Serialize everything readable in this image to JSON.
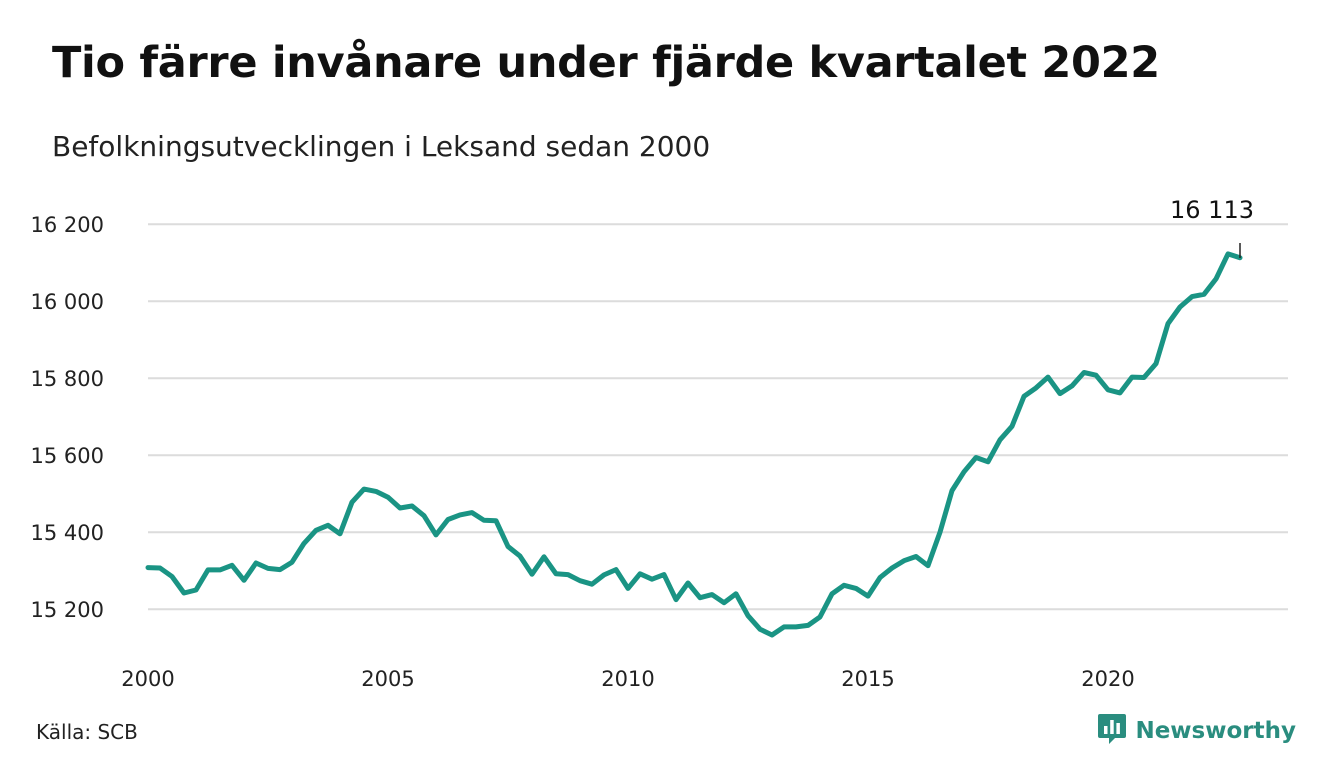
{
  "header": {
    "title": "Tio färre invånare under fjärde kvartalet 2022",
    "subtitle": "Befolkningsutvecklingen i Leksand sedan 2000"
  },
  "footer": {
    "source": "Källa: SCB",
    "brand": "Newsworthy",
    "brand_icon": "newsworthy-logo-icon"
  },
  "colors": {
    "line": "#1a9484",
    "grid": "#dcdcdc",
    "brand": "#2a8d7f",
    "text": "#111111"
  },
  "chart_data": {
    "type": "line",
    "title": "Tio färre invånare under fjärde kvartalet 2022",
    "subtitle": "Befolkningsutvecklingen i Leksand sedan 2000",
    "xlabel": "",
    "ylabel": "",
    "xlim": [
      2000,
      2023.75
    ],
    "ylim": [
      15120,
      16250
    ],
    "grid": true,
    "legend": "none",
    "y_ticks": [
      15200,
      15400,
      15600,
      15800,
      16000,
      16200
    ],
    "y_tick_labels": [
      "15 200",
      "15 400",
      "15 600",
      "15 800",
      "16 000",
      "16 200"
    ],
    "x_ticks": [
      2000,
      2005,
      2010,
      2015,
      2020
    ],
    "x_tick_labels": [
      "2000",
      "2005",
      "2010",
      "2015",
      "2020"
    ],
    "annotation": {
      "x": 2022.75,
      "y": 16113,
      "label": "16 113"
    },
    "series": [
      {
        "x": [
          2000.0,
          2000.25,
          2000.5,
          2000.75,
          2001.0,
          2001.25,
          2001.5,
          2001.75,
          2002.0,
          2002.25,
          2002.5,
          2002.75,
          2003.0,
          2003.25,
          2003.5,
          2003.75,
          2004.0,
          2004.25,
          2004.5,
          2004.75,
          2005.0,
          2005.25,
          2005.5,
          2005.75,
          2006.0,
          2006.25,
          2006.5,
          2006.75,
          2007.0,
          2007.25,
          2007.5,
          2007.75,
          2008.0,
          2008.25,
          2008.5,
          2008.75,
          2009.0,
          2009.25,
          2009.5,
          2009.75,
          2010.0,
          2010.25,
          2010.5,
          2010.75,
          2011.0,
          2011.25,
          2011.5,
          2011.75,
          2012.0,
          2012.25,
          2012.5,
          2012.75,
          2013.0,
          2013.25,
          2013.5,
          2013.75,
          2014.0,
          2014.25,
          2014.5,
          2014.75,
          2015.0,
          2015.25,
          2015.5,
          2015.75,
          2016.0,
          2016.25,
          2016.5,
          2016.75,
          2017.0,
          2017.25,
          2017.5,
          2017.75,
          2018.0,
          2018.25,
          2018.5,
          2018.75,
          2019.0,
          2019.25,
          2019.5,
          2019.75,
          2020.0,
          2020.25,
          2020.5,
          2020.75,
          2021.0,
          2021.25,
          2021.5,
          2021.75,
          2022.0,
          2022.25,
          2022.5,
          2022.75
        ],
        "values": [
          15308,
          15307,
          15285,
          15242,
          15250,
          15302,
          15302,
          15314,
          15275,
          15320,
          15306,
          15303,
          15322,
          15371,
          15405,
          15418,
          15396,
          15478,
          15512,
          15506,
          15491,
          15463,
          15468,
          15443,
          15393,
          15433,
          15445,
          15451,
          15431,
          15430,
          15363,
          15338,
          15291,
          15336,
          15292,
          15290,
          15274,
          15265,
          15289,
          15303,
          15254,
          15292,
          15278,
          15290,
          15225,
          15268,
          15230,
          15238,
          15217,
          15240,
          15183,
          15148,
          15133,
          15154,
          15154,
          15158,
          15180,
          15240,
          15262,
          15254,
          15234,
          15282,
          15307,
          15326,
          15337,
          15313,
          15400,
          15508,
          15557,
          15594,
          15583,
          15640,
          15675,
          15753,
          15775,
          15803,
          15760,
          15780,
          15815,
          15808,
          15770,
          15762,
          15803,
          15802,
          15838,
          15942,
          15985,
          16012,
          16018,
          16058,
          16123,
          16113
        ]
      }
    ]
  }
}
